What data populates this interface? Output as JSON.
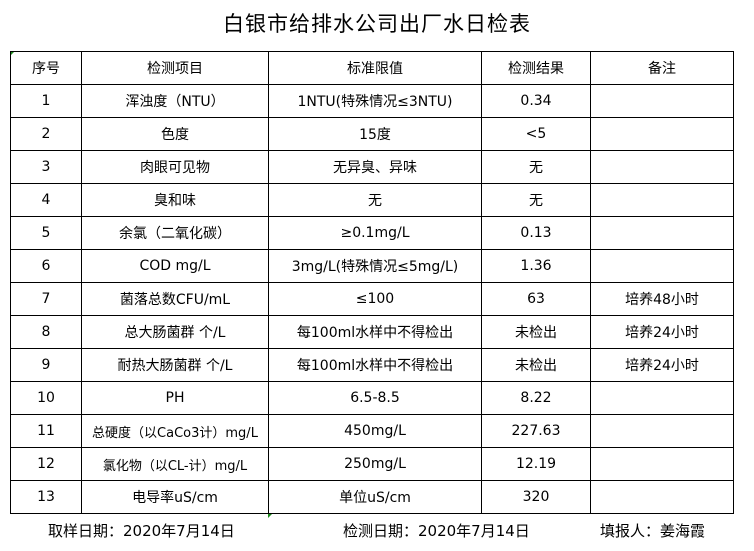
{
  "title": "白银市给排水公司出厂水日检表",
  "headers": [
    "序号",
    "检测项目",
    "标准限值",
    "检测结果",
    "备注"
  ],
  "rows": [
    [
      "1",
      "浑浊度（NTU）",
      "1NTU(特殊情况≤3NTU)",
      "0.34",
      ""
    ],
    [
      "2",
      "色度",
      "15度",
      "<5",
      ""
    ],
    [
      "3",
      "肉眼可见物",
      "无异臭、异味",
      "无",
      ""
    ],
    [
      "4",
      "臭和味",
      "无",
      "无",
      ""
    ],
    [
      "5",
      "余氯（二氧化碳）",
      "≥0.1mg/L",
      "0.13",
      ""
    ],
    [
      "6",
      "COD          mg/L",
      "3mg/L(特殊情况≤5mg/L)",
      "1.36",
      ""
    ],
    [
      "7",
      "菌落总数CFU/mL",
      "≤100",
      "63",
      "培养48小时"
    ],
    [
      "8",
      "总大肠菌群 个/L",
      "每100ml水样中不得检出",
      "未检出",
      "培养24小时"
    ],
    [
      "9",
      "耐热大肠菌群 个/L",
      "每100ml水样中不得检出",
      "未检出",
      "培养24小时"
    ],
    [
      "10",
      "PH",
      "6.5-8.5",
      "8.22",
      ""
    ],
    [
      "11",
      "总硬度（以CaCo3计）mg/L",
      "450mg/L",
      "227.63",
      ""
    ],
    [
      "12",
      "氯化物（以CL-计）mg/L",
      "250mg/L",
      "12.19",
      ""
    ],
    [
      "13",
      "电导率uS/cm",
      "单位uS/cm",
      "320",
      ""
    ]
  ],
  "footer": {
    "sampling_date": "取样日期：2020年7月14日",
    "test_date": "检测日期：2020年7月14日",
    "reporter": "填报人：姜海霞"
  }
}
